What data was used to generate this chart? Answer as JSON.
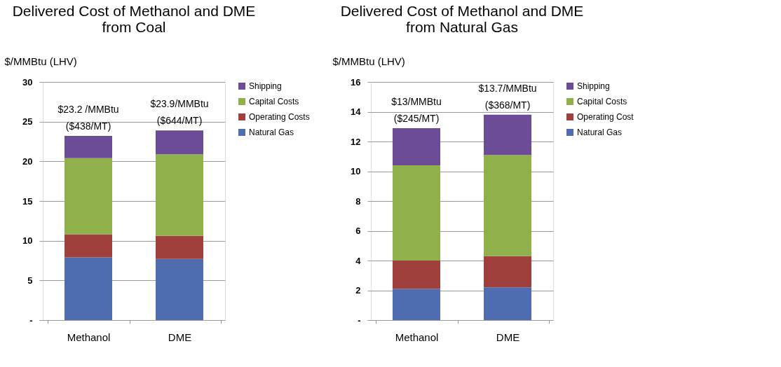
{
  "chart_data": [
    {
      "type": "bar",
      "title": "Delivered Cost of Methanol and DME from Coal",
      "ylabel": "$/MMBtu (LHV)",
      "stacked": true,
      "categories": [
        "Methanol",
        "DME"
      ],
      "series": [
        {
          "name": "Natural Gas",
          "color": "#4f6db0",
          "values": [
            7.9,
            7.7
          ]
        },
        {
          "name": "Operating Costs",
          "color": "#a0403d",
          "values": [
            2.9,
            2.9
          ]
        },
        {
          "name": "Capital Costs",
          "color": "#8fb04a",
          "values": [
            9.6,
            10.3
          ]
        },
        {
          "name": "Shipping",
          "color": "#6c4c97",
          "values": [
            2.8,
            3.0
          ]
        }
      ],
      "ylim": [
        0,
        30
      ],
      "yticks": [
        {
          "value": 0,
          "label": "-"
        },
        5,
        10,
        15,
        20,
        25,
        30
      ],
      "grid": "y",
      "legend": "right",
      "annotations": [
        "$23.2 /MMBtu",
        "($438/MT)",
        "$23.9/MMBtu",
        "($644/MT)"
      ]
    },
    {
      "type": "bar",
      "title": "Delivered Cost of Methanol and DME from Natural Gas",
      "ylabel": "$/MMBtu (LHV)",
      "stacked": true,
      "categories": [
        "Methanol",
        "DME"
      ],
      "series": [
        {
          "name": "Natural Gas",
          "color": "#4f6db0",
          "values": [
            2.1,
            2.2
          ]
        },
        {
          "name": "Operating Cost",
          "color": "#a0403d",
          "values": [
            1.9,
            2.1
          ]
        },
        {
          "name": "Capital Costs",
          "color": "#8fb04a",
          "values": [
            6.4,
            6.8
          ]
        },
        {
          "name": "Shipping",
          "color": "#6c4c97",
          "values": [
            2.5,
            2.7
          ]
        }
      ],
      "ylim": [
        0,
        16
      ],
      "yticks": [
        {
          "value": 0,
          "label": "-"
        },
        2,
        4,
        6,
        8,
        10,
        12,
        14,
        16
      ],
      "grid": "y",
      "legend": "right",
      "annotations": [
        "$13/MMBtu",
        "($245/MT)",
        "$13.7/MMBtu",
        "($368/MT)"
      ]
    }
  ]
}
